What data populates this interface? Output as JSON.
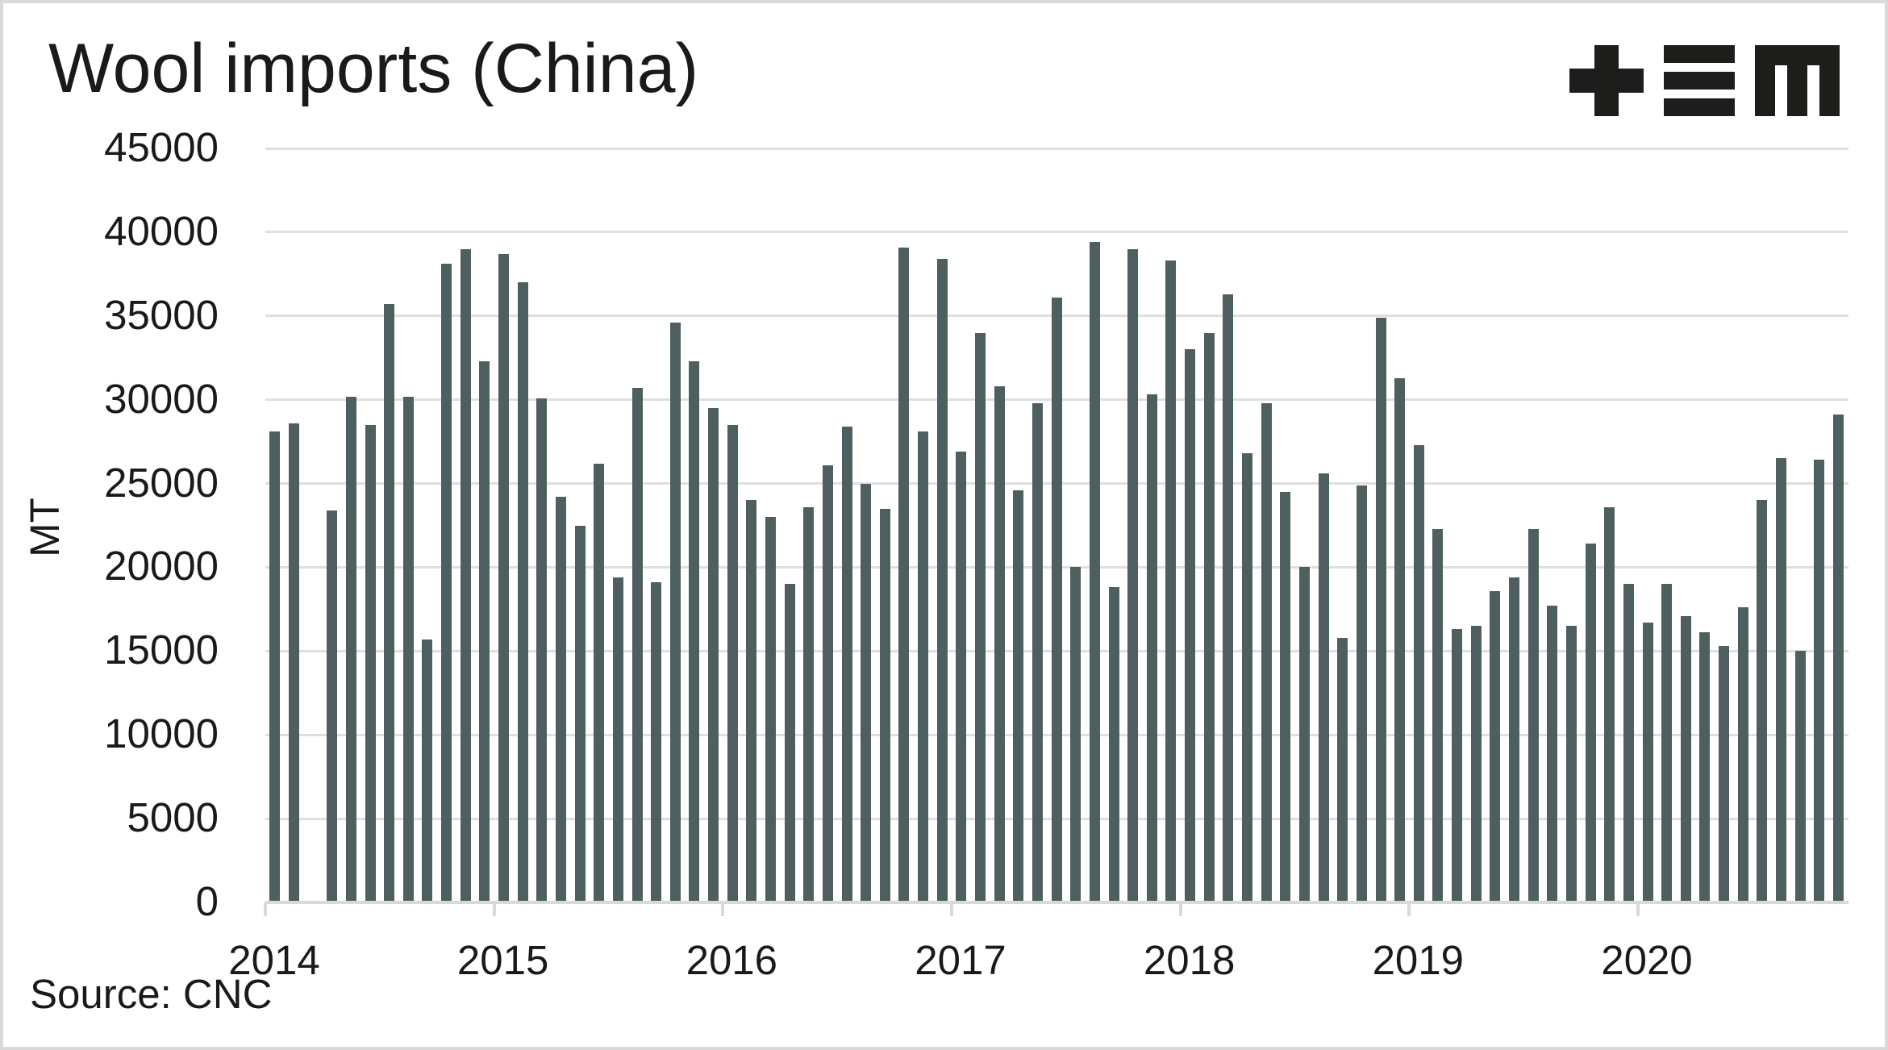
{
  "logo": {
    "alt": "+≡M",
    "icons": [
      "plus",
      "triple-bar",
      "m-glyph"
    ],
    "color": "#1d1d1b"
  },
  "colors": {
    "bar": "#4e5f5f",
    "text": "#1a1a1a",
    "gridline": "#dfdfdf",
    "axis": "#d9d9d9",
    "background": "#ffffff",
    "border": "#d9d9d9"
  },
  "chart_data": {
    "type": "bar",
    "title": "Wool imports (China)",
    "ylabel": "MT",
    "xlabel": "",
    "source": "Source: CNC",
    "unit": "MT",
    "frequency": "monthly",
    "ylim": [
      0,
      45000
    ],
    "yticks": [
      0,
      5000,
      10000,
      15000,
      20000,
      25000,
      30000,
      35000,
      40000,
      45000
    ],
    "year_ticks": [
      "2014",
      "2015",
      "2016",
      "2017",
      "2018",
      "2019",
      "2020"
    ],
    "grid": "horizontal",
    "legend": "none",
    "missing_months": [
      "2014-03"
    ],
    "series": [
      {
        "name": "Wool imports",
        "points": [
          {
            "month": "2014-01",
            "value": 28100
          },
          {
            "month": "2014-02",
            "value": 28600
          },
          {
            "month": "2014-03",
            "value": null
          },
          {
            "month": "2014-04",
            "value": 23400
          },
          {
            "month": "2014-05",
            "value": 30200
          },
          {
            "month": "2014-06",
            "value": 28500
          },
          {
            "month": "2014-07",
            "value": 35700
          },
          {
            "month": "2014-08",
            "value": 30200
          },
          {
            "month": "2014-09",
            "value": 15700
          },
          {
            "month": "2014-10",
            "value": 38100
          },
          {
            "month": "2014-11",
            "value": 39000
          },
          {
            "month": "2014-12",
            "value": 32300
          },
          {
            "month": "2015-01",
            "value": 38700
          },
          {
            "month": "2015-02",
            "value": 37000
          },
          {
            "month": "2015-03",
            "value": 30100
          },
          {
            "month": "2015-04",
            "value": 24200
          },
          {
            "month": "2015-05",
            "value": 22500
          },
          {
            "month": "2015-06",
            "value": 26200
          },
          {
            "month": "2015-07",
            "value": 19400
          },
          {
            "month": "2015-08",
            "value": 30700
          },
          {
            "month": "2015-09",
            "value": 19100
          },
          {
            "month": "2015-10",
            "value": 34600
          },
          {
            "month": "2015-11",
            "value": 32300
          },
          {
            "month": "2015-12",
            "value": 29500
          },
          {
            "month": "2016-01",
            "value": 28500
          },
          {
            "month": "2016-02",
            "value": 24000
          },
          {
            "month": "2016-03",
            "value": 23000
          },
          {
            "month": "2016-04",
            "value": 19000
          },
          {
            "month": "2016-05",
            "value": 23600
          },
          {
            "month": "2016-06",
            "value": 26100
          },
          {
            "month": "2016-07",
            "value": 28400
          },
          {
            "month": "2016-08",
            "value": 25000
          },
          {
            "month": "2016-09",
            "value": 23500
          },
          {
            "month": "2016-10",
            "value": 39100
          },
          {
            "month": "2016-11",
            "value": 28100
          },
          {
            "month": "2016-12",
            "value": 38400
          },
          {
            "month": "2017-01",
            "value": 26900
          },
          {
            "month": "2017-02",
            "value": 34000
          },
          {
            "month": "2017-03",
            "value": 30800
          },
          {
            "month": "2017-04",
            "value": 24600
          },
          {
            "month": "2017-05",
            "value": 29800
          },
          {
            "month": "2017-06",
            "value": 36100
          },
          {
            "month": "2017-07",
            "value": 20000
          },
          {
            "month": "2017-08",
            "value": 39400
          },
          {
            "month": "2017-09",
            "value": 18800
          },
          {
            "month": "2017-10",
            "value": 39000
          },
          {
            "month": "2017-11",
            "value": 30300
          },
          {
            "month": "2017-12",
            "value": 38300
          },
          {
            "month": "2018-01",
            "value": 33000
          },
          {
            "month": "2018-02",
            "value": 34000
          },
          {
            "month": "2018-03",
            "value": 36300
          },
          {
            "month": "2018-04",
            "value": 26800
          },
          {
            "month": "2018-05",
            "value": 29800
          },
          {
            "month": "2018-06",
            "value": 24500
          },
          {
            "month": "2018-07",
            "value": 20000
          },
          {
            "month": "2018-08",
            "value": 25600
          },
          {
            "month": "2018-09",
            "value": 15800
          },
          {
            "month": "2018-10",
            "value": 24900
          },
          {
            "month": "2018-11",
            "value": 34900
          },
          {
            "month": "2018-12",
            "value": 31300
          },
          {
            "month": "2019-01",
            "value": 27300
          },
          {
            "month": "2019-02",
            "value": 22300
          },
          {
            "month": "2019-03",
            "value": 16300
          },
          {
            "month": "2019-04",
            "value": 16500
          },
          {
            "month": "2019-05",
            "value": 18600
          },
          {
            "month": "2019-06",
            "value": 19400
          },
          {
            "month": "2019-07",
            "value": 22300
          },
          {
            "month": "2019-08",
            "value": 17700
          },
          {
            "month": "2019-09",
            "value": 16500
          },
          {
            "month": "2019-10",
            "value": 21400
          },
          {
            "month": "2019-11",
            "value": 23600
          },
          {
            "month": "2019-12",
            "value": 19000
          },
          {
            "month": "2020-01",
            "value": 16700
          },
          {
            "month": "2020-02",
            "value": 19000
          },
          {
            "month": "2020-03",
            "value": 17100
          },
          {
            "month": "2020-04",
            "value": 16100
          },
          {
            "month": "2020-05",
            "value": 15300
          },
          {
            "month": "2020-06",
            "value": 17600
          },
          {
            "month": "2020-07",
            "value": 24000
          },
          {
            "month": "2020-08",
            "value": 26500
          },
          {
            "month": "2020-09",
            "value": 15000
          },
          {
            "month": "2020-10",
            "value": 26400
          },
          {
            "month": "2020-11",
            "value": 29100
          }
        ]
      }
    ]
  }
}
